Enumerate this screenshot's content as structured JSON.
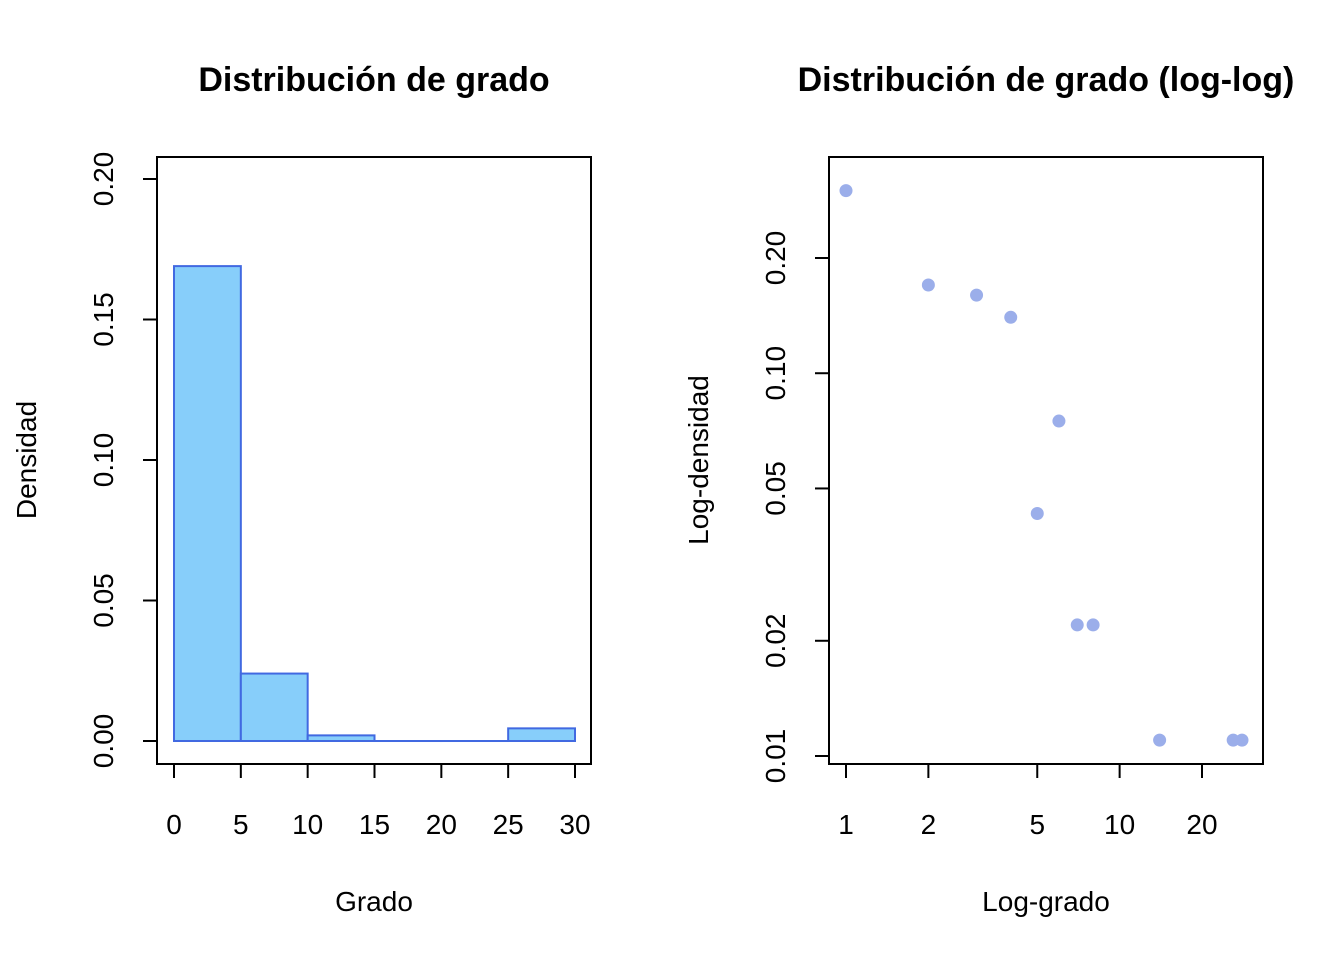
{
  "chart_data": [
    {
      "type": "bar",
      "title": "Distribución de grado",
      "xlabel": "Grado",
      "ylabel": "Densidad",
      "bins": [
        {
          "from": 0,
          "to": 5,
          "value": 0.169
        },
        {
          "from": 5,
          "to": 10,
          "value": 0.024
        },
        {
          "from": 10,
          "to": 15,
          "value": 0.002
        },
        {
          "from": 15,
          "to": 20,
          "value": 0.0
        },
        {
          "from": 20,
          "to": 25,
          "value": 0.0
        },
        {
          "from": 25,
          "to": 30,
          "value": 0.0045
        }
      ],
      "xlim": [
        0,
        30
      ],
      "ylim": [
        0,
        0.2
      ],
      "x_ticks": [
        "0",
        "5",
        "10",
        "15",
        "20",
        "25",
        "30"
      ],
      "y_ticks": [
        "0.00",
        "0.05",
        "0.10",
        "0.15",
        "0.20"
      ],
      "fill_color": "#87CEFA",
      "border_color": "#4169E1",
      "grid": false
    },
    {
      "type": "scatter",
      "title": "Distribución de grado (log-log)",
      "xlabel": "Log-grado",
      "ylabel": "Log-densidad",
      "x_scale": "log",
      "y_scale": "log",
      "x_ticks": [
        "1",
        "2",
        "5",
        "10",
        "20"
      ],
      "y_ticks": [
        "0.01",
        "0.02",
        "0.05",
        "0.10",
        "0.20"
      ],
      "points": [
        {
          "x": 1,
          "y": 0.3
        },
        {
          "x": 2,
          "y": 0.17
        },
        {
          "x": 3,
          "y": 0.16
        },
        {
          "x": 4,
          "y": 0.14
        },
        {
          "x": 5,
          "y": 0.043
        },
        {
          "x": 6,
          "y": 0.075
        },
        {
          "x": 7,
          "y": 0.022
        },
        {
          "x": 8,
          "y": 0.022
        },
        {
          "x": 14,
          "y": 0.011
        },
        {
          "x": 26,
          "y": 0.011
        },
        {
          "x": 28,
          "y": 0.011
        }
      ],
      "point_color": "#9BAEEA",
      "grid": false
    }
  ]
}
